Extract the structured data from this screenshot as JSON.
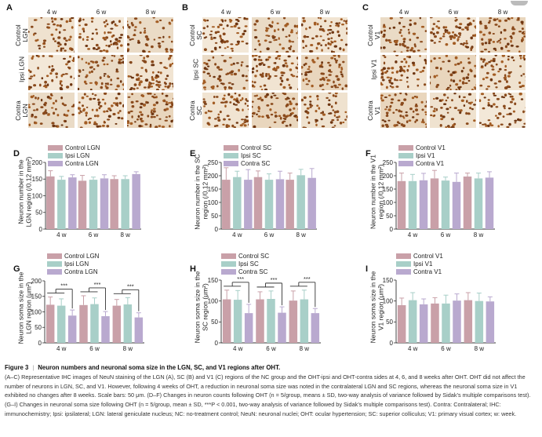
{
  "figure": {
    "number_label": "Figure 3",
    "title": "Neuron numbers and neuronal soma size in the LGN, SC, and V1 regions after OHT.",
    "caption": "(A–C) Representative IHC images of NeuN staining of the LGN (A), SC (B) and V1 (C) regions of the NC group and the OHT-ipsi and OHT-contra sides at 4, 6, and 8 weeks after OHT. OHT did not affect the number of neurons in LGN, SC, and V1. However, following 4 weeks of OHT, a reduction in neuronal soma size was noted in the contralateral LGN and SC regions, whereas the neuronal soma size in V1 exhibited no changes after 8 weeks. Scale bars: 50 μm. (D–F) Changes in neuron counts following OHT (n = 5/group, means ± SD, two-way analysis of variance followed by Sidak’s multiple comparisons test). (G–I) Changes in neuronal soma size following OHT (n = 5/group, mean ± SD, ***P < 0.001, two-way analysis of variance followed by Sidak’s multiple comparisons test). Contra: Contralateral; IHC: immunochemistry; Ipsi: ipsilateral; LGN: lateral geniculate nucleus; NC: no-treatment control; NeuN: neuronal nuclei; OHT: ocular hypertension; SC: superior colliculus; V1: primary visual cortex; w: week."
  },
  "colors": {
    "control": "#c9a0a8",
    "ipsi": "#a8cfc8",
    "contra": "#b9a9cf",
    "axis": "#333333",
    "sig": "#333333"
  },
  "ihc_panels": [
    {
      "letter": "A",
      "columns": [
        "4 w",
        "6 w",
        "8 w"
      ],
      "rows": [
        "Control LGN",
        "Ipsi LGN",
        "Contra LGN"
      ]
    },
    {
      "letter": "B",
      "columns": [
        "4 w",
        "6 w",
        "8 w"
      ],
      "rows": [
        "Control SC",
        "Ipsi SC",
        "Contra SC"
      ]
    },
    {
      "letter": "C",
      "columns": [
        "4 w",
        "6 w",
        "8 w"
      ],
      "rows": [
        "Control V1",
        "Ipsi V1",
        "Contra V1"
      ]
    }
  ],
  "chart_data": [
    {
      "panel": "D",
      "type": "bar",
      "ylabel": "Neuron number in the LGN region (/0.12 mm²)",
      "categories": [
        "4 w",
        "6 w",
        "8 w"
      ],
      "ylim": [
        0,
        200
      ],
      "yticks": [
        0,
        50,
        100,
        150,
        200
      ],
      "series": [
        {
          "name": "Control LGN",
          "values": [
            158,
            145,
            150
          ],
          "sd": [
            17,
            16,
            10
          ]
        },
        {
          "name": "Ipsi LGN",
          "values": [
            148,
            148,
            150
          ],
          "sd": [
            10,
            8,
            10
          ]
        },
        {
          "name": "Contra LGN",
          "values": [
            155,
            152,
            165
          ],
          "sd": [
            8,
            11,
            7
          ]
        }
      ],
      "significance": []
    },
    {
      "panel": "E",
      "type": "bar",
      "ylabel": "Neuron number in the SC region (/0.12 mm²)",
      "categories": [
        "4 w",
        "6 w",
        "8 w"
      ],
      "ylim": [
        0,
        250
      ],
      "yticks": [
        0,
        50,
        100,
        150,
        200,
        250
      ],
      "series": [
        {
          "name": "Control SC",
          "values": [
            185,
            195,
            185
          ],
          "sd": [
            45,
            23,
            25
          ]
        },
        {
          "name": "Ipsi SC",
          "values": [
            195,
            185,
            202
          ],
          "sd": [
            22,
            22,
            22
          ]
        },
        {
          "name": "Contra SC",
          "values": [
            185,
            187,
            192
          ],
          "sd": [
            38,
            30,
            35
          ]
        }
      ],
      "significance": []
    },
    {
      "panel": "F",
      "type": "bar",
      "ylabel": "Neuron number in the V1 region (/0.12 mm²)",
      "categories": [
        "4 w",
        "6 w",
        "8 w"
      ],
      "ylim": [
        0,
        250
      ],
      "yticks": [
        0,
        50,
        100,
        150,
        200,
        250
      ],
      "series": [
        {
          "name": "Control V1",
          "values": [
            180,
            190,
            197
          ],
          "sd": [
            30,
            30,
            13
          ]
        },
        {
          "name": "Ipsi V1",
          "values": [
            180,
            182,
            190
          ],
          "sd": [
            25,
            13,
            20
          ]
        },
        {
          "name": "Contra V1",
          "values": [
            183,
            177,
            193
          ],
          "sd": [
            26,
            33,
            22
          ]
        }
      ],
      "significance": []
    },
    {
      "panel": "G",
      "type": "bar",
      "ylabel": "Neuron soma size in the LGN region (μm²)",
      "categories": [
        "4 w",
        "6 w",
        "8 w"
      ],
      "ylim": [
        0,
        200
      ],
      "yticks": [
        0,
        50,
        100,
        150,
        200
      ],
      "series": [
        {
          "name": "Control LGN",
          "values": [
            123,
            122,
            120
          ],
          "sd": [
            25,
            30,
            20
          ]
        },
        {
          "name": "Ipsi LGN",
          "values": [
            120,
            125,
            124
          ],
          "sd": [
            22,
            20,
            22
          ]
        },
        {
          "name": "Contra LGN",
          "values": [
            88,
            86,
            82
          ],
          "sd": [
            18,
            15,
            15
          ]
        }
      ],
      "significance": [
        "***",
        "***",
        "***"
      ]
    },
    {
      "panel": "H",
      "type": "bar",
      "ylabel": "Neuron soma size in the SC region (μm²)",
      "categories": [
        "4 w",
        "6 w",
        "8 w"
      ],
      "ylim": [
        0,
        150
      ],
      "yticks": [
        0,
        50,
        100,
        150
      ],
      "series": [
        {
          "name": "Control SC",
          "values": [
            104,
            104,
            101
          ],
          "sd": [
            22,
            18,
            23
          ]
        },
        {
          "name": "Ipsi SC",
          "values": [
            103,
            105,
            104
          ],
          "sd": [
            22,
            19,
            22
          ]
        },
        {
          "name": "Contra SC",
          "values": [
            71,
            72,
            71
          ],
          "sd": [
            21,
            14,
            11
          ]
        }
      ],
      "significance": [
        "***",
        "***",
        "***"
      ]
    },
    {
      "panel": "I",
      "type": "bar",
      "ylabel": "Neuron soma size in the V1 region (μm²)",
      "categories": [
        "4 w",
        "6 w",
        "8 w"
      ],
      "ylim": [
        0,
        150
      ],
      "yticks": [
        0,
        50,
        100,
        150
      ],
      "series": [
        {
          "name": "Control V1",
          "values": [
            90,
            94,
            102
          ],
          "sd": [
            17,
            14,
            18
          ]
        },
        {
          "name": "Ipsi V1",
          "values": [
            102,
            94,
            100
          ],
          "sd": [
            18,
            20,
            19
          ]
        },
        {
          "name": "Contra V1",
          "values": [
            92,
            101,
            99
          ],
          "sd": [
            13,
            16,
            11
          ]
        }
      ],
      "significance": []
    }
  ]
}
